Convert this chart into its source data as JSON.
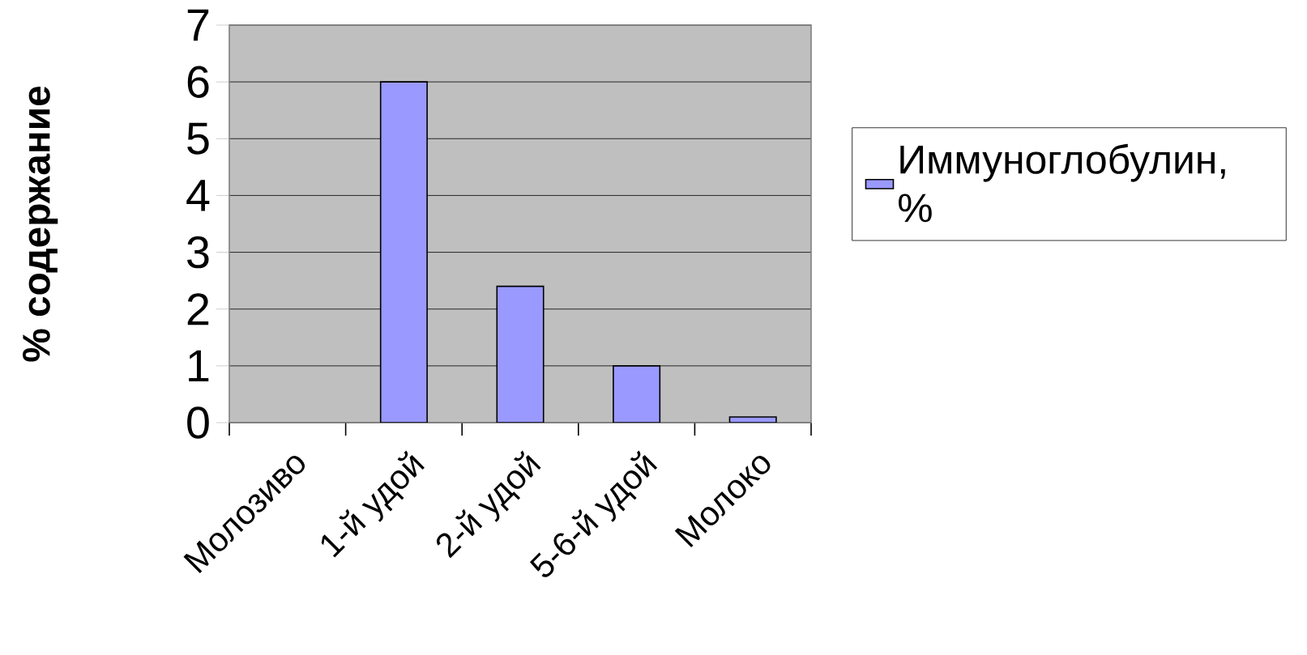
{
  "chart_data": {
    "type": "bar",
    "ylabel": "% содержание",
    "categories": [
      "Молозиво",
      "1-й удой",
      "2-й удой",
      "5-6-й удой",
      "Молоко"
    ],
    "series": [
      {
        "name": "Иммуноглобулин, %",
        "color": "#9999ff",
        "values": [
          null,
          6,
          2.4,
          1,
          0.1
        ]
      }
    ],
    "ylim": [
      0,
      7
    ],
    "yticks": [
      0,
      1,
      2,
      3,
      4,
      5,
      6,
      7
    ],
    "grid": "y",
    "legend": "right"
  }
}
